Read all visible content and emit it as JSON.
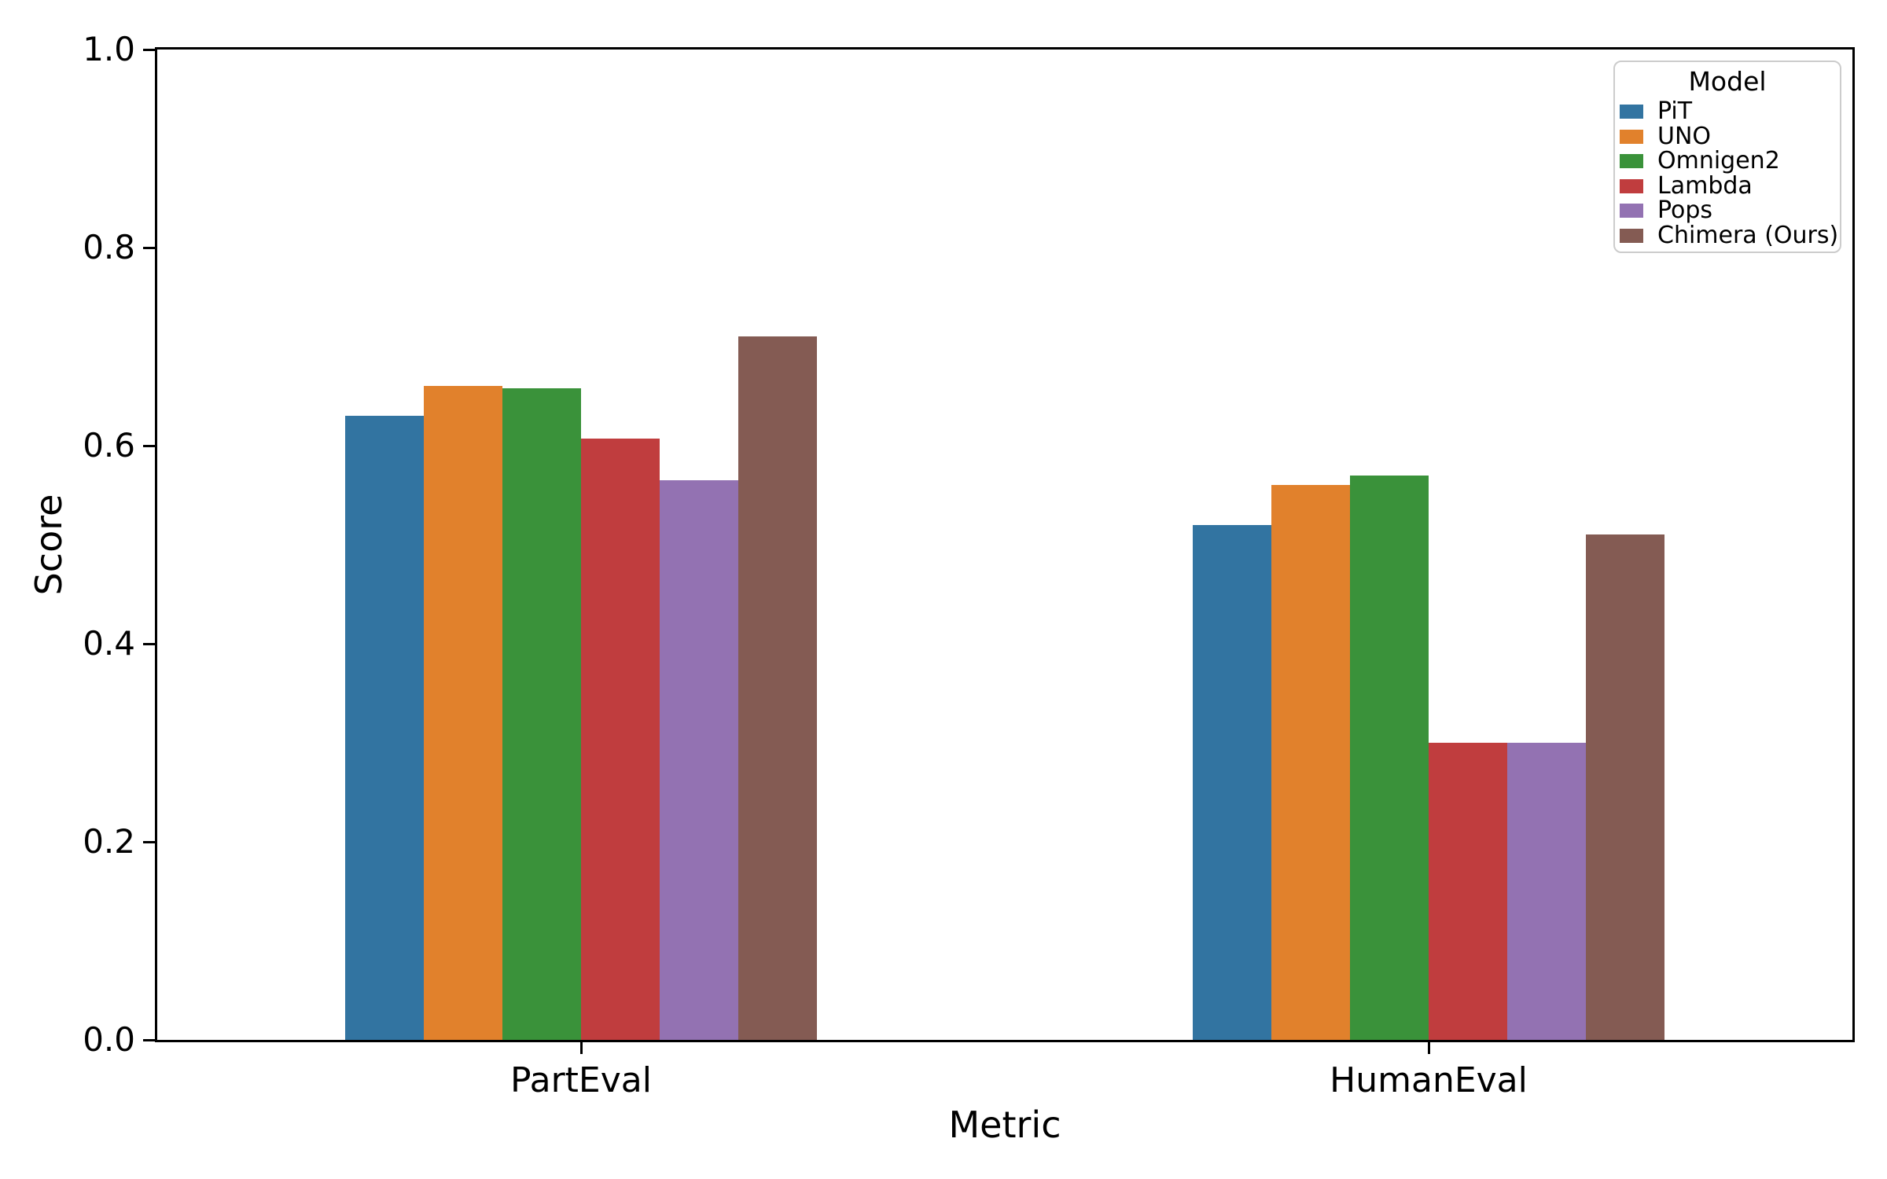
{
  "chart_data": {
    "type": "bar",
    "title": "",
    "xlabel": "Metric",
    "ylabel": "Score",
    "categories": [
      "PartEval",
      "HumanEval"
    ],
    "series": [
      {
        "name": "PiT",
        "color": "#3274a1",
        "values": [
          0.63,
          0.52
        ]
      },
      {
        "name": "UNO",
        "color": "#e1812c",
        "values": [
          0.66,
          0.56
        ]
      },
      {
        "name": "Omnigen2",
        "color": "#3a923a",
        "values": [
          0.658,
          0.57
        ]
      },
      {
        "name": "Lambda",
        "color": "#c03d3e",
        "values": [
          0.607,
          0.3
        ]
      },
      {
        "name": "Pops",
        "color": "#9372b2",
        "values": [
          0.565,
          0.3
        ]
      },
      {
        "name": "Chimera (Ours)",
        "color": "#845b53",
        "values": [
          0.71,
          0.51
        ]
      }
    ],
    "ylim": [
      0.0,
      1.0
    ],
    "yticks": [
      0.0,
      0.2,
      0.4,
      0.6,
      0.8,
      1.0
    ],
    "grid": false,
    "legend_title": "Model",
    "legend_position": "upper right",
    "spine_color": "#000000"
  }
}
